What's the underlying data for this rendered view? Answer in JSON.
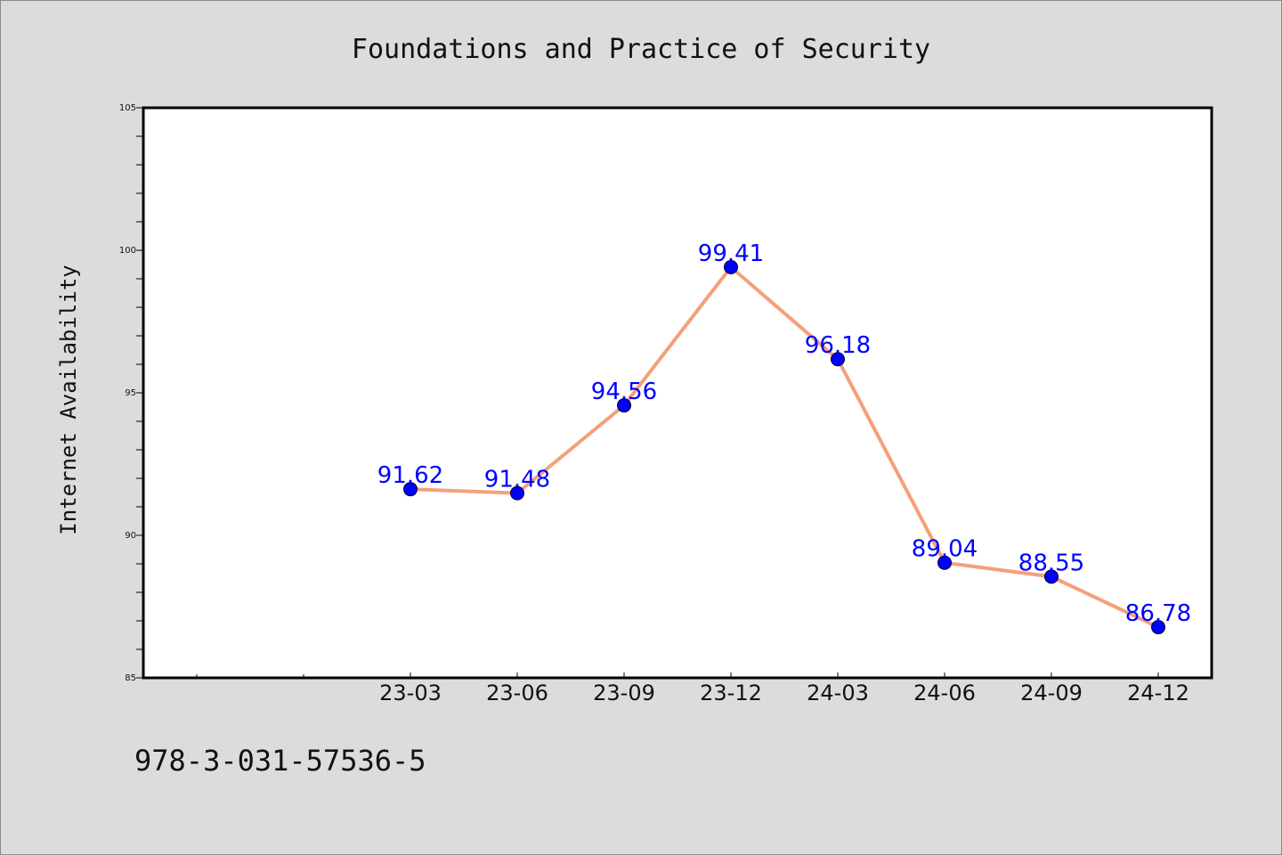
{
  "chart_data": {
    "type": "line",
    "title": "Foundations and Practice of Security",
    "xlabel": "",
    "ylabel": "Internet Availability",
    "categories": [
      "23-03",
      "23-06",
      "23-09",
      "23-12",
      "24-03",
      "24-06",
      "24-09",
      "24-12"
    ],
    "series": [
      {
        "values": [
          91.62,
          91.48,
          94.56,
          99.41,
          96.18,
          89.04,
          88.55,
          86.78
        ],
        "data_labels": [
          "91.62",
          "91.48",
          "94.56",
          "99.41",
          "96.18",
          "89.04",
          "88.55",
          "86.78"
        ],
        "line_color": "#f4a07a",
        "marker_color": "#0000ff"
      }
    ],
    "ylim": [
      85,
      105
    ],
    "y_ticks": [
      "85",
      "90",
      "95",
      "100",
      "105"
    ],
    "grid": false,
    "legend": "none"
  },
  "footer": {
    "text": "978-3-031-57536-5"
  },
  "colors": {
    "background": "#dcdcdc",
    "plot_background": "#ffffff"
  }
}
